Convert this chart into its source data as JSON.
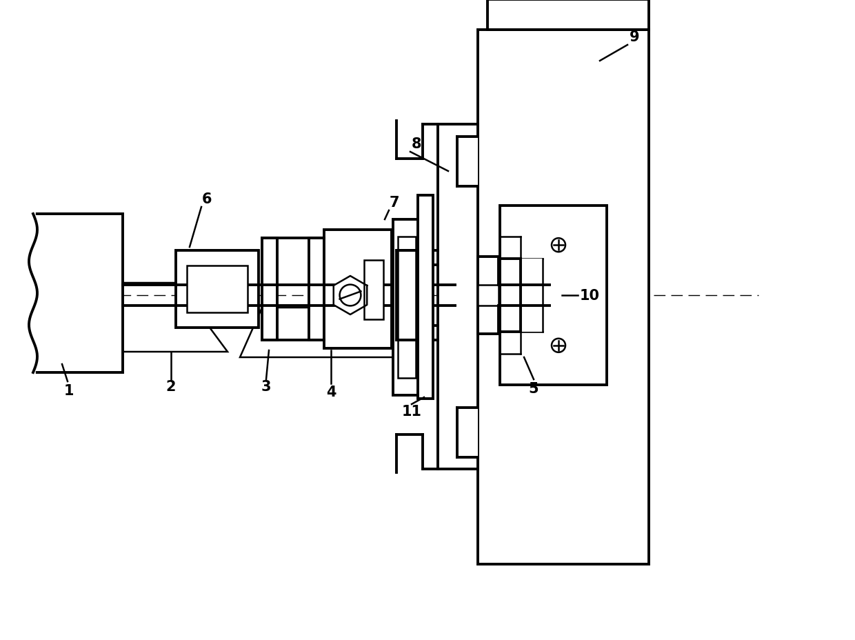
{
  "bg": "#ffffff",
  "lc": "#000000",
  "lw": 1.8,
  "tlw": 2.8,
  "fs": 15,
  "figw": 12.4,
  "figh": 9.29,
  "dpi": 100
}
